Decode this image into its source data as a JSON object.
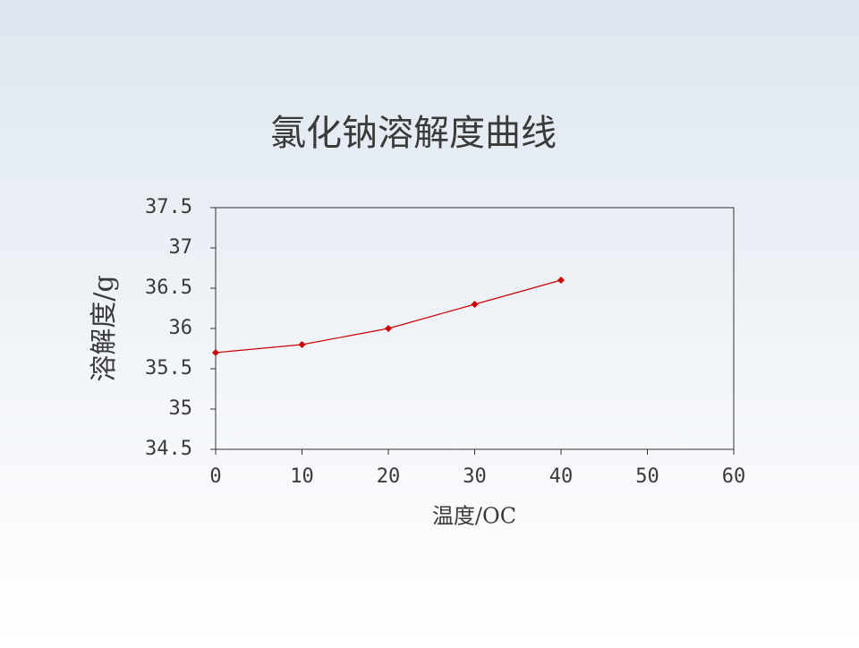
{
  "chart_data": {
    "type": "line",
    "title": "氯化钠溶解度曲线",
    "x_label": "温度/OC",
    "y_label": "溶解度/g",
    "x": [
      0,
      10,
      20,
      30,
      40
    ],
    "values": [
      35.7,
      35.8,
      36.0,
      36.3,
      36.6
    ],
    "color": "#cc0000",
    "xlim": [
      0,
      60
    ],
    "xticks": [
      0,
      10,
      20,
      30,
      40,
      50,
      60
    ],
    "ylim": [
      34.5,
      37.5
    ],
    "yticks": [
      34.5,
      35,
      35.5,
      36,
      36.5,
      37,
      37.5
    ],
    "grid": false
  }
}
